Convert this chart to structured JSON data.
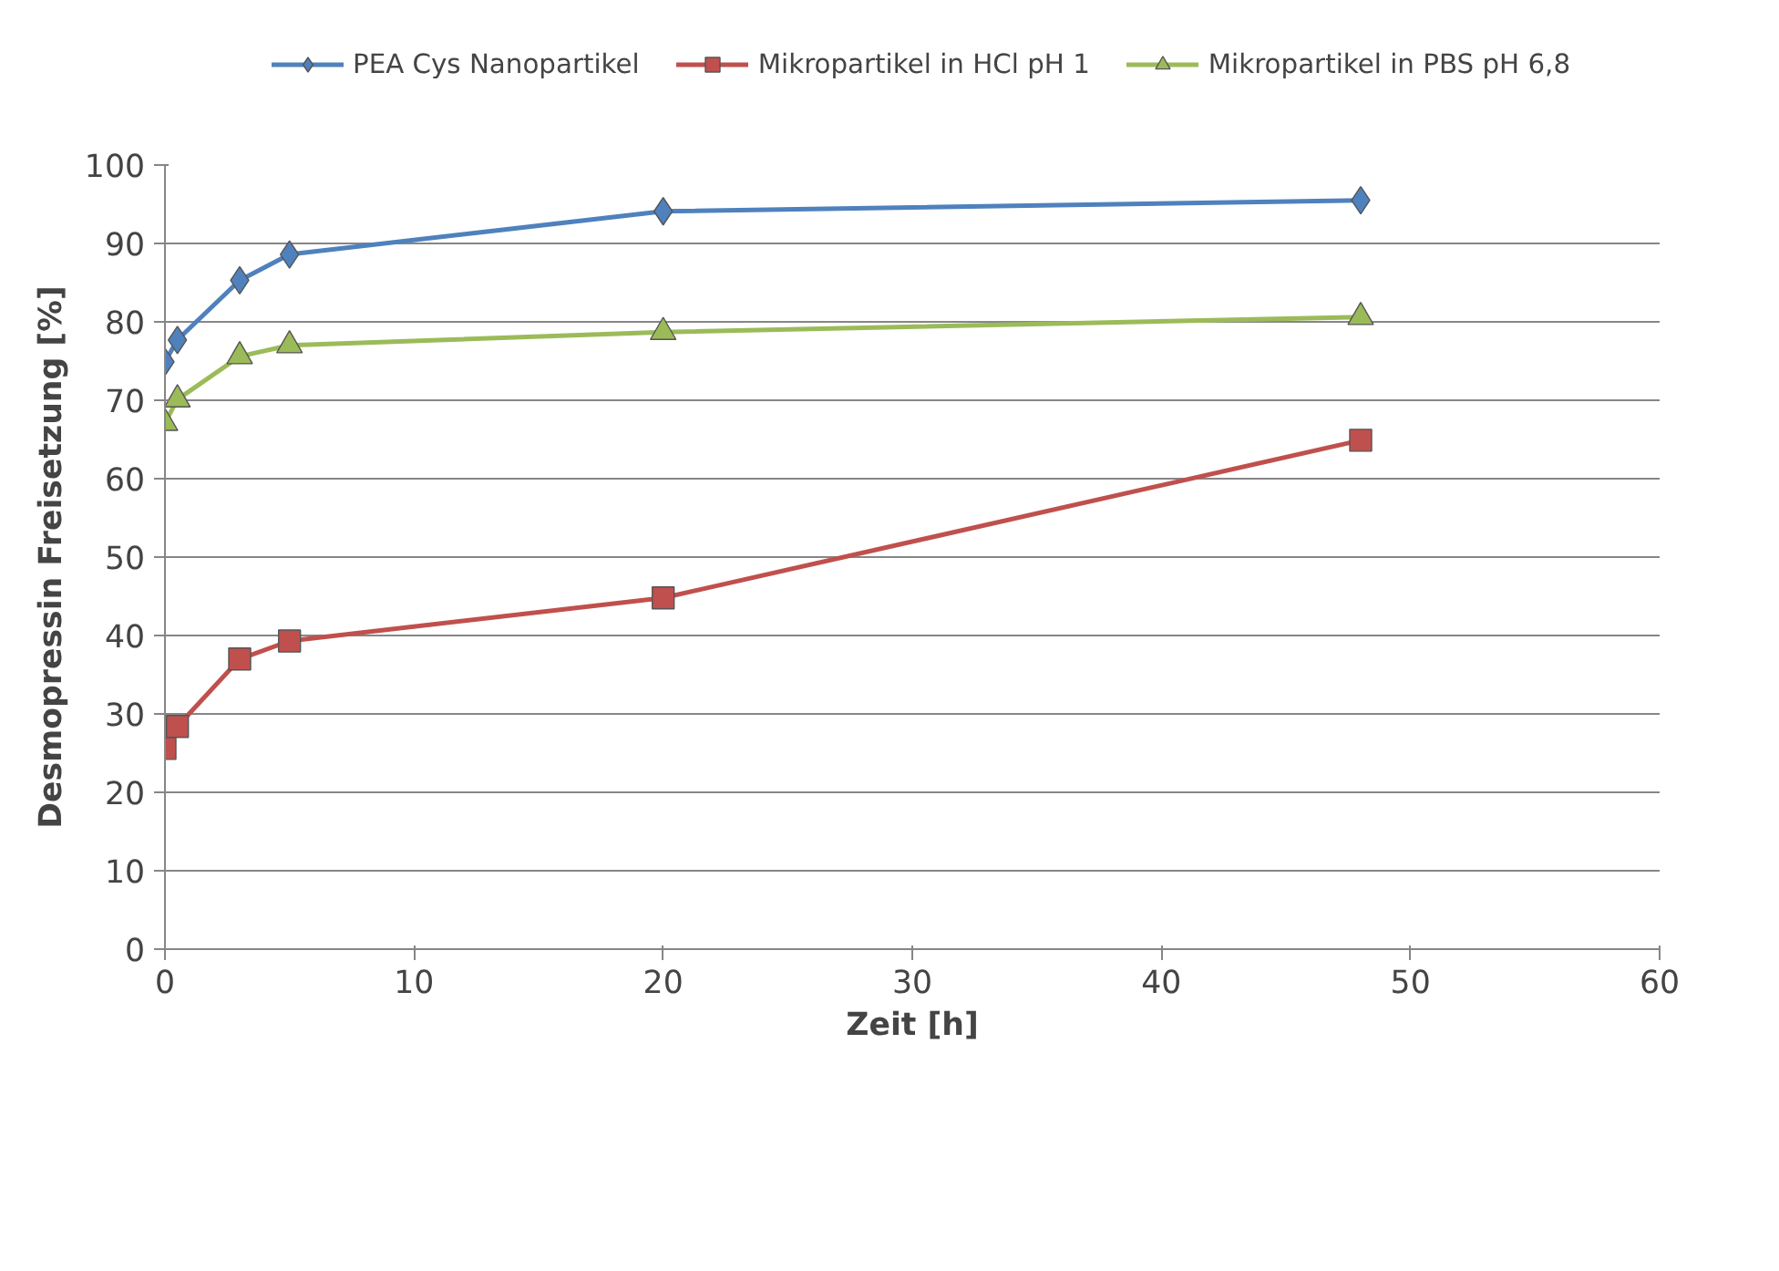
{
  "chart_data": {
    "type": "line",
    "xlabel": "Zeit [h]",
    "ylabel": "Desmopressin Freisetzung [%]",
    "xlim": [
      0,
      60
    ],
    "xticks": [
      0,
      10,
      20,
      30,
      40,
      50,
      60
    ],
    "ylim": [
      0,
      100
    ],
    "yticks": [
      0,
      10,
      20,
      30,
      40,
      50,
      60,
      70,
      80,
      90,
      100
    ],
    "grid": "y",
    "legend": "top",
    "line_style": "solid",
    "series": [
      {
        "name": "PEA Cys Nanopartikel",
        "color": "#4f81bd",
        "marker": "diamond",
        "x": [
          0,
          0.5,
          3,
          5,
          20,
          48
        ],
        "values": [
          74.9,
          77.7,
          85.3,
          88.6,
          94.1,
          95.5
        ]
      },
      {
        "name": "Mikropartikel in HCl pH 1",
        "color": "#c0504d",
        "marker": "square",
        "x": [
          0,
          0.5,
          3,
          5,
          20,
          48
        ],
        "values": [
          25.6,
          28.4,
          37.0,
          39.3,
          44.8,
          64.9
        ]
      },
      {
        "name": "Mikropartikel in PBS pH 6,8",
        "color": "#9bbb59",
        "marker": "triangle",
        "x": [
          0,
          0.5,
          3,
          5,
          20,
          48
        ],
        "values": [
          67.1,
          70.1,
          75.6,
          77.0,
          78.7,
          80.6
        ]
      }
    ]
  }
}
